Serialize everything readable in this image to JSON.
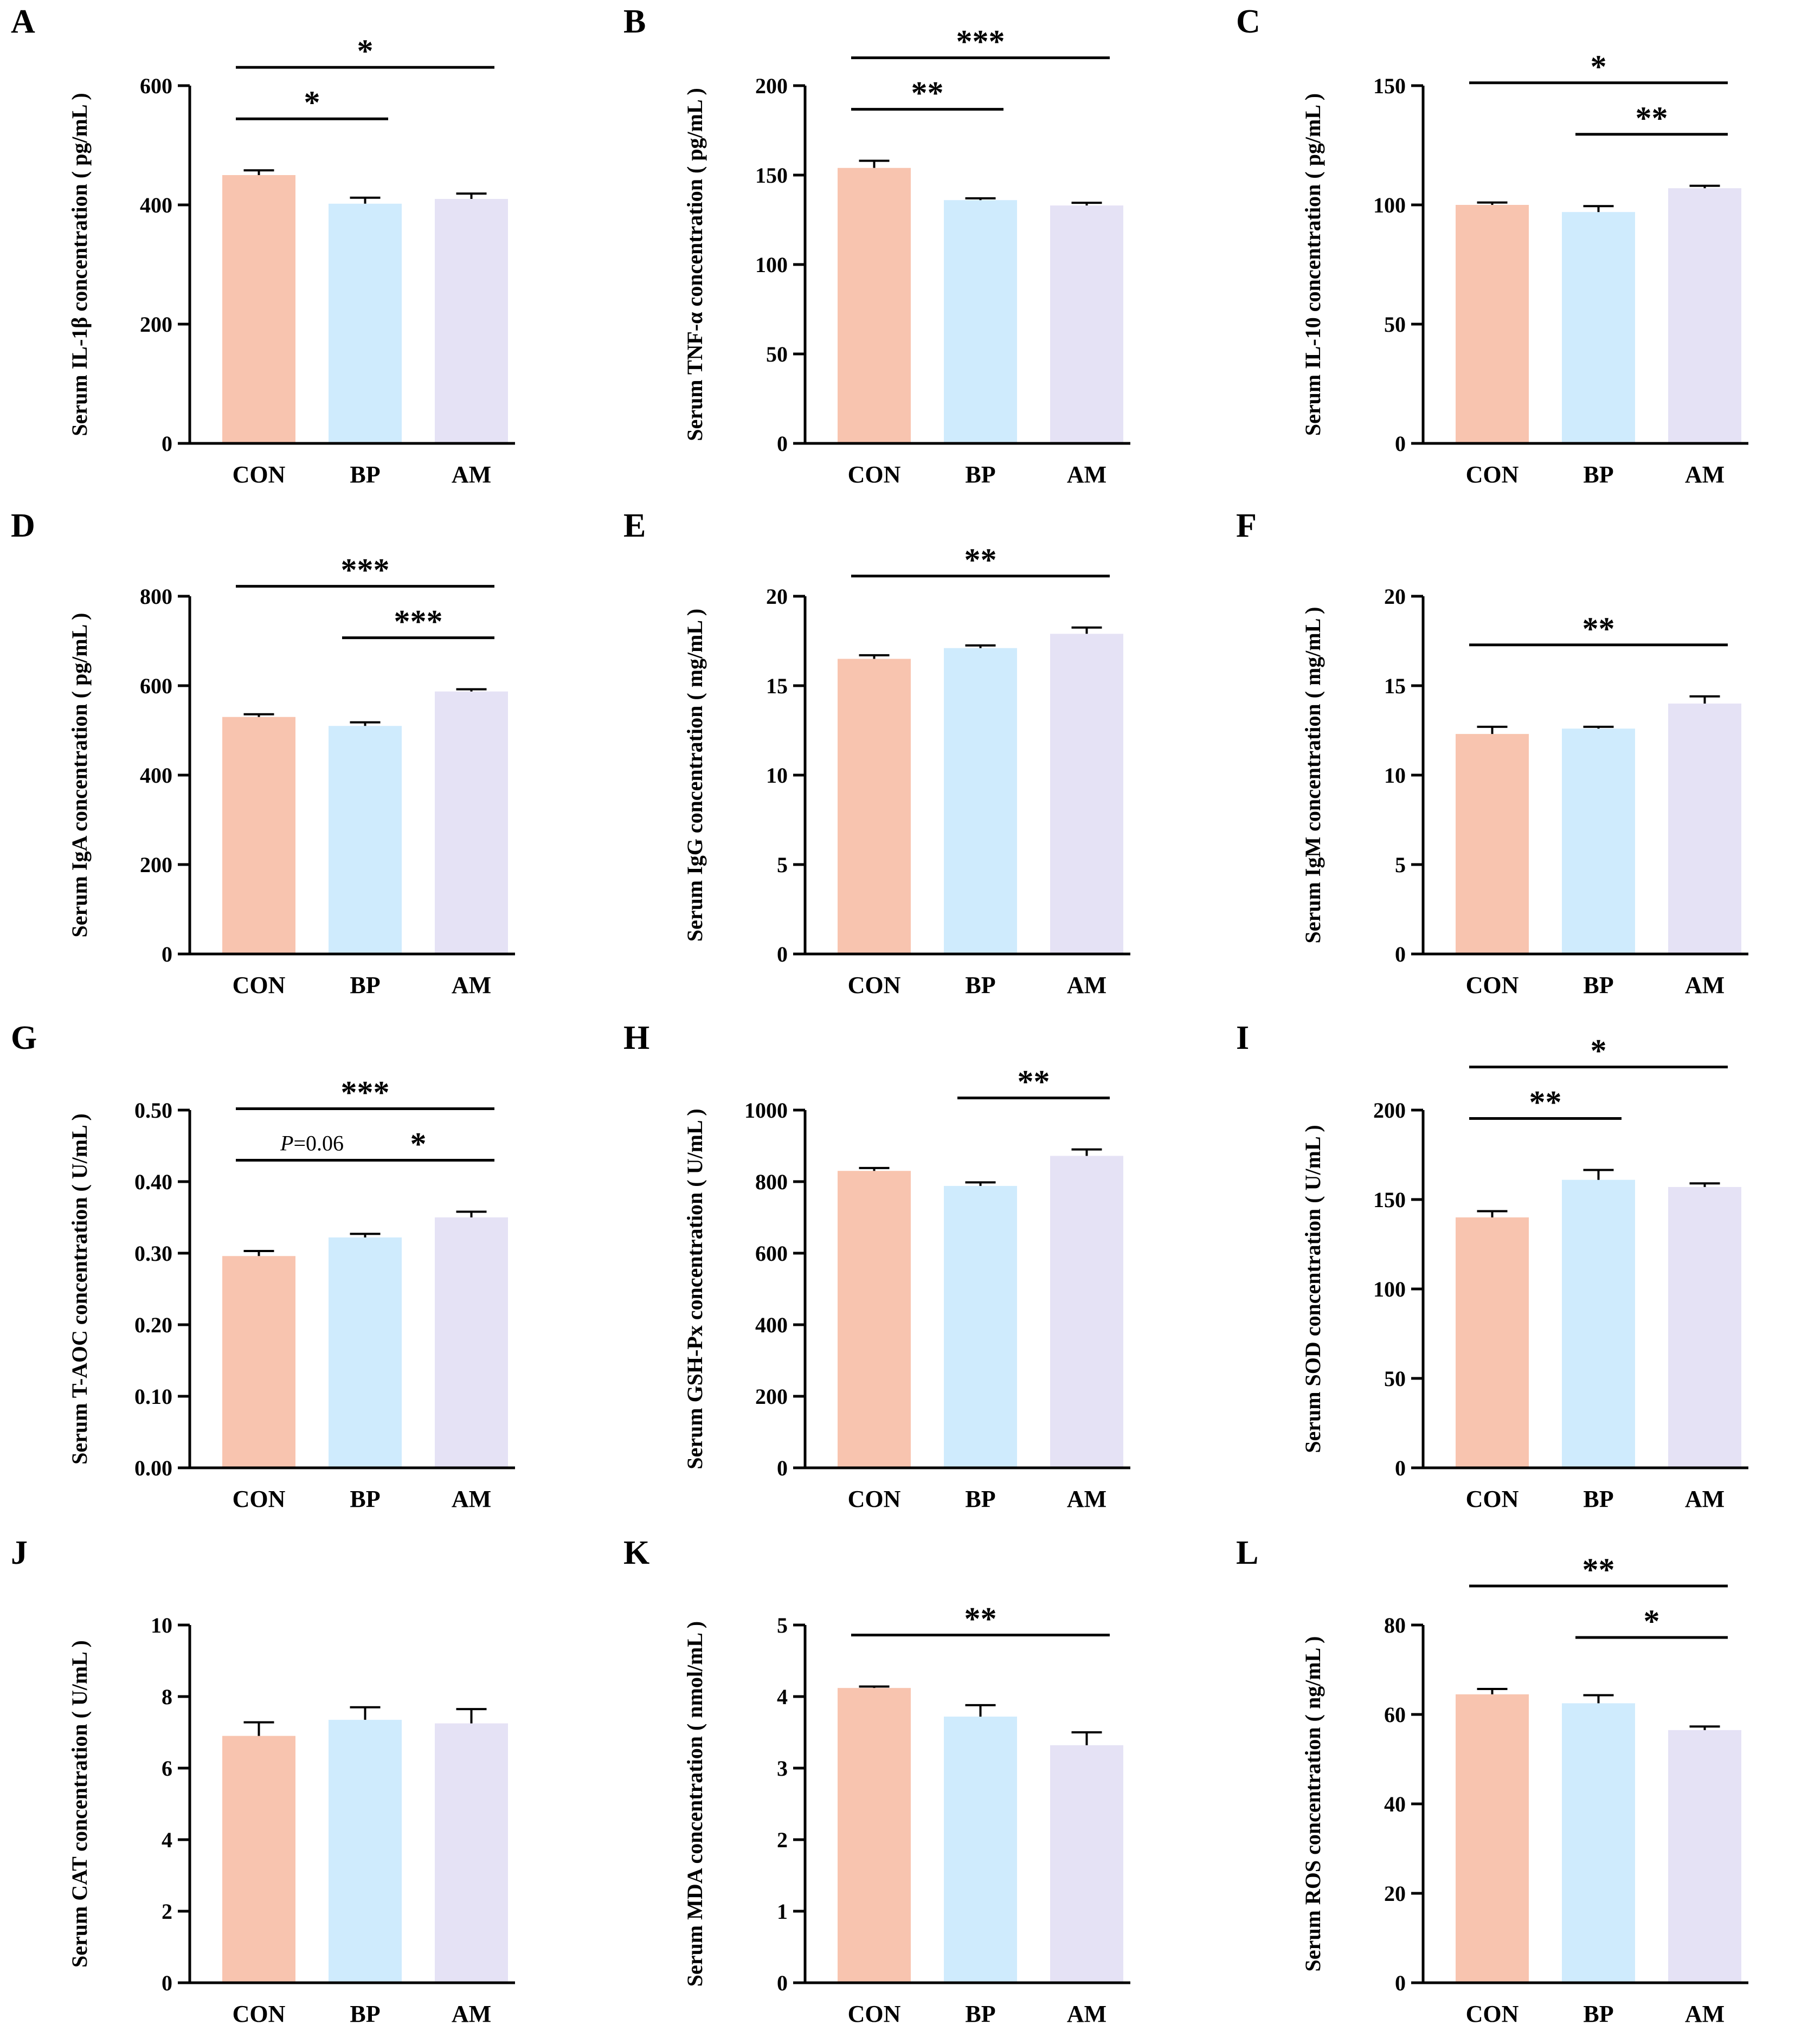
{
  "chart_data": [
    {
      "type": "bar",
      "panel": "A",
      "ylabel": "Serum IL-1β concentration ( pg/mL )",
      "categories": [
        "CON",
        "BP",
        "AM"
      ],
      "values": [
        450,
        402,
        410
      ],
      "errors": [
        8,
        10,
        9
      ],
      "ylim": [
        0,
        600
      ],
      "yticks": [
        0,
        200,
        400,
        600
      ],
      "ytick_labels": [
        "0",
        "200",
        "400",
        "600"
      ],
      "colors": [
        "#F8C4AF",
        "#CFEBFD",
        "#E5E2F5"
      ],
      "significance": [
        {
          "from": 0,
          "to": 2,
          "label": "*",
          "level": 2
        },
        {
          "from": 0,
          "to": 1,
          "label": "*",
          "level": 1
        }
      ]
    },
    {
      "type": "bar",
      "panel": "B",
      "ylabel": "Serum TNF-α concentration ( pg/mL )",
      "categories": [
        "CON",
        "BP",
        "AM"
      ],
      "values": [
        154,
        136,
        133
      ],
      "errors": [
        4,
        1,
        1.5
      ],
      "ylim": [
        0,
        200
      ],
      "yticks": [
        0,
        50,
        100,
        150,
        200
      ],
      "ytick_labels": [
        "0",
        "50",
        "100",
        "150",
        "200"
      ],
      "colors": [
        "#F8C4AF",
        "#CFEBFD",
        "#E5E2F5"
      ],
      "significance": [
        {
          "from": 0,
          "to": 2,
          "label": "***",
          "level": 2
        },
        {
          "from": 0,
          "to": 1,
          "label": "**",
          "level": 1
        }
      ]
    },
    {
      "type": "bar",
      "panel": "C",
      "ylabel": "Serum IL-10 concentration ( pg/mL )",
      "categories": [
        "CON",
        "BP",
        "AM"
      ],
      "values": [
        100,
        97,
        107
      ],
      "errors": [
        1,
        2.5,
        1
      ],
      "ylim": [
        0,
        150
      ],
      "yticks": [
        0,
        50,
        100,
        150
      ],
      "ytick_labels": [
        "0",
        "50",
        "100",
        "150"
      ],
      "colors": [
        "#F8C4AF",
        "#CFEBFD",
        "#E5E2F5"
      ],
      "significance": [
        {
          "from": 0,
          "to": 2,
          "label": "*",
          "level": 2
        },
        {
          "from": 1,
          "to": 2,
          "label": "**",
          "level": 1
        }
      ]
    },
    {
      "type": "bar",
      "panel": "D",
      "ylabel": "Serum IgA concentration ( pg/mL )",
      "categories": [
        "CON",
        "BP",
        "AM"
      ],
      "values": [
        530,
        510,
        587
      ],
      "errors": [
        6,
        8,
        5
      ],
      "ylim": [
        0,
        800
      ],
      "yticks": [
        0,
        200,
        400,
        600,
        800
      ],
      "ytick_labels": [
        "0",
        "200",
        "400",
        "600",
        "800"
      ],
      "colors": [
        "#F8C4AF",
        "#CFEBFD",
        "#E5E2F5"
      ],
      "significance": [
        {
          "from": 0,
          "to": 2,
          "label": "***",
          "level": 2
        },
        {
          "from": 1,
          "to": 2,
          "label": "***",
          "level": 1
        }
      ]
    },
    {
      "type": "bar",
      "panel": "E",
      "ylabel": "Serum IgG concentration ( mg/mL )",
      "categories": [
        "CON",
        "BP",
        "AM"
      ],
      "values": [
        16.5,
        17.1,
        17.9
      ],
      "errors": [
        0.2,
        0.15,
        0.35
      ],
      "ylim": [
        0,
        20
      ],
      "yticks": [
        0,
        5,
        10,
        15,
        20
      ],
      "ytick_labels": [
        "0",
        "5",
        "10",
        "15",
        "20"
      ],
      "colors": [
        "#F8C4AF",
        "#CFEBFD",
        "#E5E2F5"
      ],
      "significance": [
        {
          "from": 0,
          "to": 2,
          "label": "**",
          "level": 1
        }
      ]
    },
    {
      "type": "bar",
      "panel": "F",
      "ylabel": "Serum IgM concentration ( mg/mL )",
      "categories": [
        "CON",
        "BP",
        "AM"
      ],
      "values": [
        12.3,
        12.6,
        14.0
      ],
      "errors": [
        0.4,
        0.1,
        0.4
      ],
      "ylim": [
        0,
        20
      ],
      "yticks": [
        0,
        5,
        10,
        15,
        20
      ],
      "ytick_labels": [
        "0",
        "5",
        "10",
        "15",
        "20"
      ],
      "colors": [
        "#F8C4AF",
        "#CFEBFD",
        "#E5E2F5"
      ],
      "significance": [
        {
          "from": 0,
          "to": 2,
          "label": "**",
          "level": 1
        }
      ]
    },
    {
      "type": "bar",
      "panel": "G",
      "ylabel": "Serum T-AOC concentration ( U/mL )",
      "categories": [
        "CON",
        "BP",
        "AM"
      ],
      "values": [
        0.296,
        0.322,
        0.35
      ],
      "errors": [
        0.007,
        0.005,
        0.008
      ],
      "ylim": [
        0,
        0.5
      ],
      "yticks": [
        0,
        0.1,
        0.2,
        0.3,
        0.4,
        0.5
      ],
      "ytick_labels": [
        "0.00",
        "0.10",
        "0.20",
        "0.30",
        "0.40",
        "0.50"
      ],
      "colors": [
        "#F8C4AF",
        "#CFEBFD",
        "#E5E2F5"
      ],
      "significance": [
        {
          "from": 0,
          "to": 2,
          "label": "***",
          "level": 2
        },
        {
          "from": 0,
          "to": 1,
          "label": "=0.06",
          "prefix": "P",
          "level": 1
        },
        {
          "from": 1,
          "to": 2,
          "label": "*",
          "level": 1
        }
      ]
    },
    {
      "type": "bar",
      "panel": "H",
      "ylabel": "Serum GSH-Px concentration ( U/mL )",
      "categories": [
        "CON",
        "BP",
        "AM"
      ],
      "values": [
        830,
        788,
        872
      ],
      "errors": [
        8,
        10,
        18
      ],
      "ylim": [
        0,
        1000
      ],
      "yticks": [
        0,
        200,
        400,
        600,
        800,
        1000
      ],
      "ytick_labels": [
        "0",
        "200",
        "400",
        "600",
        "800",
        "1000"
      ],
      "colors": [
        "#F8C4AF",
        "#CFEBFD",
        "#E5E2F5"
      ],
      "significance": [
        {
          "from": 1,
          "to": 2,
          "label": "**",
          "level": 1
        }
      ]
    },
    {
      "type": "bar",
      "panel": "I",
      "ylabel": "Serum SOD concentration ( U/mL )",
      "categories": [
        "CON",
        "BP",
        "AM"
      ],
      "values": [
        140,
        161,
        157
      ],
      "errors": [
        3.5,
        5.5,
        2
      ],
      "ylim": [
        0,
        200
      ],
      "yticks": [
        0,
        50,
        100,
        150,
        200
      ],
      "ytick_labels": [
        "0",
        "50",
        "100",
        "150",
        "200"
      ],
      "colors": [
        "#F8C4AF",
        "#CFEBFD",
        "#E5E2F5"
      ],
      "significance": [
        {
          "from": 0,
          "to": 2,
          "label": "*",
          "level": 2
        },
        {
          "from": 0,
          "to": 1,
          "label": "**",
          "level": 1
        }
      ]
    },
    {
      "type": "bar",
      "panel": "J",
      "ylabel": "Serum CAT concentration ( U/mL )",
      "categories": [
        "CON",
        "BP",
        "AM"
      ],
      "values": [
        6.9,
        7.35,
        7.25
      ],
      "errors": [
        0.38,
        0.35,
        0.4
      ],
      "ylim": [
        0,
        10
      ],
      "yticks": [
        0,
        2,
        4,
        6,
        8,
        10
      ],
      "ytick_labels": [
        "0",
        "2",
        "4",
        "6",
        "8",
        "10"
      ],
      "colors": [
        "#F8C4AF",
        "#CFEBFD",
        "#E5E2F5"
      ],
      "significance": []
    },
    {
      "type": "bar",
      "panel": "K",
      "ylabel": "Serum MDA concentration ( nmol/mL )",
      "categories": [
        "CON",
        "BP",
        "AM"
      ],
      "values": [
        4.12,
        3.72,
        3.32
      ],
      "errors": [
        0.02,
        0.16,
        0.18
      ],
      "ylim": [
        0,
        5
      ],
      "yticks": [
        0,
        1,
        2,
        3,
        4,
        5
      ],
      "ytick_labels": [
        "0",
        "1",
        "2",
        "3",
        "4",
        "5"
      ],
      "colors": [
        "#F8C4AF",
        "#CFEBFD",
        "#E5E2F5"
      ],
      "significance": [
        {
          "from": 0,
          "to": 2,
          "label": "**",
          "level": 1
        }
      ]
    },
    {
      "type": "bar",
      "panel": "L",
      "ylabel": "Serum ROS concentration ( ng/mL )",
      "categories": [
        "CON",
        "BP",
        "AM"
      ],
      "values": [
        64.5,
        62.5,
        56.5
      ],
      "errors": [
        1.2,
        1.8,
        0.8
      ],
      "ylim": [
        0,
        80
      ],
      "yticks": [
        0,
        20,
        40,
        60,
        80
      ],
      "ytick_labels": [
        "0",
        "20",
        "40",
        "60",
        "80"
      ],
      "colors": [
        "#F8C4AF",
        "#CFEBFD",
        "#E5E2F5"
      ],
      "significance": [
        {
          "from": 0,
          "to": 2,
          "label": "**",
          "level": 2
        },
        {
          "from": 1,
          "to": 2,
          "label": "*",
          "level": 1
        }
      ]
    }
  ]
}
